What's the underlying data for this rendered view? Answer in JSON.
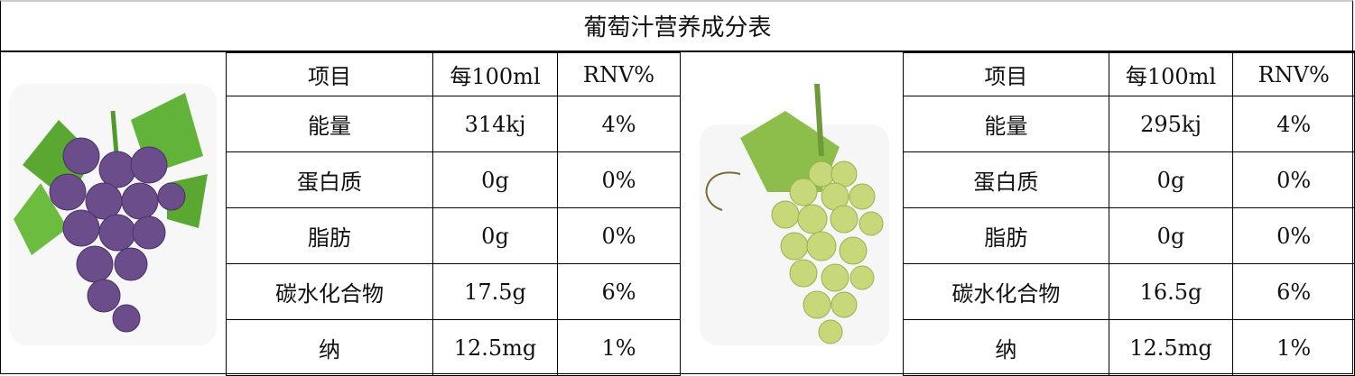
{
  "title": "葡萄汁营养成分表",
  "tables": [
    {
      "image": "purple-grapes",
      "header": [
        "项目",
        "每100ml",
        "RNV%"
      ],
      "rows": [
        [
          "能量",
          "314kj",
          "4%"
        ],
        [
          "蛋白质",
          "0g",
          "0%"
        ],
        [
          "脂肪",
          "0g",
          "0%"
        ],
        [
          "碳水化合物",
          "17.5g",
          "6%"
        ],
        [
          "纳",
          "12.5mg",
          "1%"
        ]
      ]
    },
    {
      "image": "green-grapes",
      "header": [
        "项目",
        "每100ml",
        "RNV%"
      ],
      "rows": [
        [
          "能量",
          "295kj",
          "4%"
        ],
        [
          "蛋白质",
          "0g",
          "0%"
        ],
        [
          "脂肪",
          "0g",
          "0%"
        ],
        [
          "碳水化合物",
          "16.5g",
          "6%"
        ],
        [
          "纳",
          "12.5mg",
          "1%"
        ]
      ]
    }
  ],
  "colors": {
    "purple": "#6a4d8a",
    "green": "#c6d87a",
    "leaf": "#5aa832"
  }
}
